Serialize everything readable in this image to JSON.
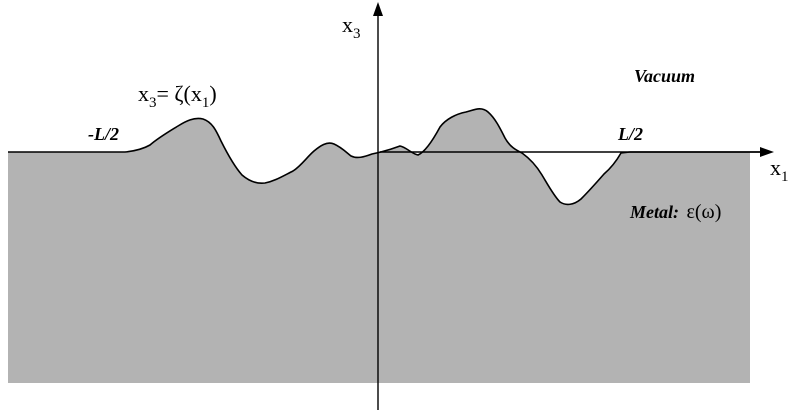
{
  "figure": {
    "axis_x_label": "x",
    "axis_x_subscript": "1",
    "axis_y_label": "x",
    "axis_y_subscript": "3",
    "surface_equation": {
      "lhs": "x",
      "lhs_subscript": "3",
      "rhs_prefix": "= ζ(x",
      "rhs_subscript": "1",
      "rhs_suffix": ")"
    },
    "region_vacuum_label": "Vacuum",
    "region_metal_label": "Metal:",
    "metal_permittivity": "ε(ω)",
    "left_bound_label": "-L/2",
    "right_bound_label": "L/2"
  },
  "colors": {
    "metal_fill": "#b3b3b3",
    "line": "#000000",
    "background": "#ffffff"
  }
}
